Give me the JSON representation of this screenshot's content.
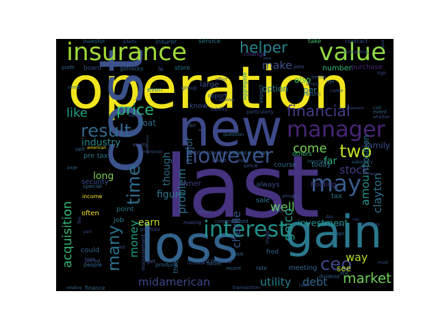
{
  "wordcloud": {
    "background": "#000000",
    "words": [
      {
        "text": "operation",
        "color": "#f1e51d"
      },
      {
        "text": "last",
        "color": "#46327e"
      },
      {
        "text": "cost",
        "color": "#3b528b"
      },
      {
        "text": "new",
        "color": "#3e4989"
      },
      {
        "text": "loss",
        "color": "#33638d"
      },
      {
        "text": "gain",
        "color": "#2a788e"
      },
      {
        "text": "insurance",
        "color": "#a0da39"
      },
      {
        "text": "value",
        "color": "#8fd744"
      },
      {
        "text": "manager",
        "color": "#482576"
      },
      {
        "text": "interest",
        "color": "#21918c"
      },
      {
        "text": "however",
        "color": "#3b528b"
      },
      {
        "text": "result",
        "color": "#31688e"
      },
      {
        "text": "may",
        "color": "#375b8d"
      },
      {
        "text": "time",
        "color": "#2e6f8e"
      },
      {
        "text": "two",
        "color": "#bddf26"
      },
      {
        "text": "many",
        "color": "#2c718e"
      },
      {
        "text": "price",
        "color": "#2db27d"
      },
      {
        "text": "financial",
        "color": "#443b84"
      },
      {
        "text": "helper",
        "color": "#26828e"
      },
      {
        "text": "ceo",
        "color": "#3e4989"
      },
      {
        "text": "acquisition",
        "color": "#35b779"
      },
      {
        "text": "like",
        "color": "#1fa187"
      },
      {
        "text": "problem",
        "color": "#2c718e"
      },
      {
        "text": "market",
        "color": "#6ece58"
      },
      {
        "text": "well",
        "color": "#5ec962"
      },
      {
        "text": "geico",
        "color": "#1f9e89"
      },
      {
        "text": "money",
        "color": "#1fa187"
      },
      {
        "text": "charlie",
        "color": "#38588c"
      },
      {
        "text": "clayton",
        "color": "#2d708e"
      },
      {
        "text": "come",
        "color": "#7ad151"
      },
      {
        "text": "amount",
        "color": "#21918c"
      },
      {
        "text": "make",
        "color": "#3b528b"
      },
      {
        "text": "stock",
        "color": "#433e85"
      },
      {
        "text": "midamerican",
        "color": "#3e4989"
      },
      {
        "text": "utility",
        "color": "#277f8e"
      },
      {
        "text": "debt",
        "color": "#31688e"
      },
      {
        "text": "way",
        "color": "#b5de2b"
      },
      {
        "text": "earn",
        "color": "#c2df23"
      },
      {
        "text": "major",
        "color": "#30698e"
      },
      {
        "text": "though",
        "color": "#2e6e8e"
      },
      {
        "text": "long",
        "color": "#7fd34e"
      },
      {
        "text": "industry",
        "color": "#25848e"
      },
      {
        "text": "figure",
        "color": "#2a768e"
      },
      {
        "text": "investment",
        "color": "#1f988b"
      },
      {
        "text": "far",
        "color": "#2ab07f"
      },
      {
        "text": "position",
        "color": "#287c8e"
      },
      {
        "text": "family",
        "color": "#3b528b"
      },
      {
        "text": "see",
        "color": "#bddf26"
      },
      {
        "text": "float",
        "color": "#2c728e"
      },
      {
        "text": "know",
        "color": "#3b528b"
      },
      {
        "text": "option",
        "color": "#287d8e"
      },
      {
        "text": "also",
        "color": "#45bf70"
      },
      {
        "text": "per",
        "color": "#2a788e"
      },
      {
        "text": "number",
        "color": "#35b779"
      },
      {
        "text": "service",
        "color": "#2a788e"
      },
      {
        "text": "insurer",
        "color": "#33638d"
      },
      {
        "text": "board",
        "color": "#3b528b"
      },
      {
        "text": "investor",
        "color": "#31688e"
      },
      {
        "text": "take",
        "color": "#4ac16d"
      },
      {
        "text": "contract",
        "color": "#3b528b"
      },
      {
        "text": "store",
        "color": "#2a788e"
      },
      {
        "text": "even",
        "color": "#2a788e"
      },
      {
        "text": "tax",
        "color": "#2a788e"
      },
      {
        "text": "often",
        "color": "#fde725"
      },
      {
        "text": "job",
        "color": "#2a788e"
      },
      {
        "text": "point",
        "color": "#2a788e"
      },
      {
        "text": "owner",
        "color": "#433e85"
      },
      {
        "text": "holding",
        "color": "#443983"
      },
      {
        "text": "sale",
        "color": "#2a788e"
      },
      {
        "text": "always",
        "color": "#3b528b"
      },
      {
        "text": "today",
        "color": "#2a788e"
      },
      {
        "text": "course",
        "color": "#31688e"
      },
      {
        "text": "security",
        "color": "#3b528b"
      },
      {
        "text": "could",
        "color": "#31688e"
      },
      {
        "text": "three",
        "color": "#31688e"
      },
      {
        "text": "fred",
        "color": "#31688e"
      },
      {
        "text": "meeting",
        "color": "#31688e"
      },
      {
        "text": "pre tax",
        "color": "#2a788e"
      },
      {
        "text": "report",
        "color": "#3b528b"
      },
      {
        "text": "group",
        "color": "#3b528b"
      },
      {
        "text": "aggregate",
        "color": "#21918c"
      },
      {
        "text": "expect",
        "color": "#31688e"
      },
      {
        "text": "change",
        "color": "#443983"
      },
      {
        "text": "purchase",
        "color": "#482878"
      },
      {
        "text": "large",
        "color": "#3b528b"
      },
      {
        "text": "le",
        "color": "#3b528b"
      },
      {
        "text": "gotrocks",
        "color": "#31688e"
      },
      {
        "text": "profit",
        "color": "#31688e"
      },
      {
        "text": "need",
        "color": "#31688e"
      },
      {
        "text": "ten",
        "color": "#3b528b"
      },
      {
        "text": "intrinsic value",
        "color": "#3b528b"
      },
      {
        "text": "balance sheet",
        "color": "#31688e"
      },
      {
        "text": "since",
        "color": "#3b528b"
      },
      {
        "text": "others",
        "color": "#35b779"
      },
      {
        "text": "increased",
        "color": "#3b528b"
      },
      {
        "text": "book",
        "color": "#31688e"
      },
      {
        "text": "rate",
        "color": "#31688e"
      },
      {
        "text": "earned",
        "color": "#31688e"
      },
      {
        "text": "management",
        "color": "#3b528b"
      },
      {
        "text": "dividend",
        "color": "#31688e"
      },
      {
        "text": "transaction",
        "color": "#3b528b"
      },
      {
        "text": "finance",
        "color": "#31688e"
      },
      {
        "text": "relative",
        "color": "#31688e"
      },
      {
        "text": "people",
        "color": "#31688e"
      },
      {
        "text": "let",
        "color": "#3b528b"
      },
      {
        "text": "get",
        "color": "#3b528b"
      },
      {
        "text": "future",
        "color": "#31688e"
      },
      {
        "text": "recent",
        "color": "#31688e"
      },
      {
        "text": "corporate",
        "color": "#3b528b"
      },
      {
        "text": "question",
        "color": "#31688e"
      },
      {
        "text": "income",
        "color": "#fde725"
      },
      {
        "text": "sell",
        "color": "#31688e"
      },
      {
        "text": "american",
        "color": "#fde725"
      },
      {
        "text": "special",
        "color": "#31688e"
      },
      {
        "text": "still",
        "color": "#31688e"
      },
      {
        "text": "ago",
        "color": "#31688e"
      },
      {
        "text": "making",
        "color": "#3b528b"
      },
      {
        "text": "produce",
        "color": "#31688e"
      },
      {
        "text": "equity",
        "color": "#3b528b"
      },
      {
        "text": "page",
        "color": "#31688e"
      },
      {
        "text": "never",
        "color": "#3b528b"
      },
      {
        "text": "every",
        "color": "#31688e"
      },
      {
        "text": "annual",
        "color": "#3b528b"
      },
      {
        "text": "gillette",
        "color": "#3b528b"
      },
      {
        "text": "effect",
        "color": "#3b528b"
      },
      {
        "text": "customer",
        "color": "#3b528b"
      },
      {
        "text": "particularly",
        "color": "#3b528b"
      },
      {
        "text": "liability",
        "color": "#3b528b"
      },
      {
        "text": "return",
        "color": "#31688e"
      },
      {
        "text": "important",
        "color": "#31688e"
      },
      {
        "text": "subsidiary",
        "color": "#31688e"
      },
      {
        "text": "better",
        "color": "#3b528b"
      },
      {
        "text": "net",
        "color": "#31688e"
      },
      {
        "text": "came",
        "color": "#3b528b"
      },
      {
        "text": "call",
        "color": "#31688e"
      },
      {
        "text": "event",
        "color": "#31688e"
      },
      {
        "text": "whether",
        "color": "#3b528b"
      },
      {
        "text": "statement",
        "color": "#3b528b"
      },
      {
        "text": "moreover",
        "color": "#3b528b"
      },
      {
        "text": "owned",
        "color": "#3b528b"
      },
      {
        "text": "period",
        "color": "#3b528b"
      },
      {
        "text": "almost",
        "color": "#3b528b"
      },
      {
        "text": "fact",
        "color": "#3b528b"
      },
      {
        "text": "table",
        "color": "#3b528b"
      },
      {
        "text": "hope",
        "color": "#3b528b"
      },
      {
        "text": "part",
        "color": "#3b528b"
      },
      {
        "text": "fire",
        "color": "#3b528b"
      },
      {
        "text": "unit",
        "color": "#3b528b"
      },
      {
        "text": "run",
        "color": "#3b528b"
      },
      {
        "text": "saturday",
        "color": "#3b528b"
      },
      {
        "text": "day",
        "color": "#3b528b"
      },
      {
        "text": "increase",
        "color": "#3b528b"
      },
      {
        "text": "outstanding",
        "color": "#3b528b"
      },
      {
        "text": "pete",
        "color": "#3b528b"
      },
      {
        "text": "simply",
        "color": "#3b528b"
      },
      {
        "text": "high",
        "color": "#3b528b"
      },
      {
        "text": "good",
        "color": "#3b528b"
      },
      {
        "text": "back",
        "color": "#3b528b"
      },
      {
        "text": "indeed",
        "color": "#3b528b"
      },
      {
        "text": "whose",
        "color": "#3b528b"
      },
      {
        "text": "made",
        "color": "#3b528b"
      },
      {
        "text": "must",
        "color": "#3b528b"
      },
      {
        "text": "experience",
        "color": "#3b528b"
      },
      {
        "text": "portfolio",
        "color": "#3b528b"
      },
      {
        "text": "manner",
        "color": "#3b528b"
      },
      {
        "text": "deal",
        "color": "#3b528b"
      },
      {
        "text": "rule",
        "color": "#3b528b"
      }
    ]
  }
}
